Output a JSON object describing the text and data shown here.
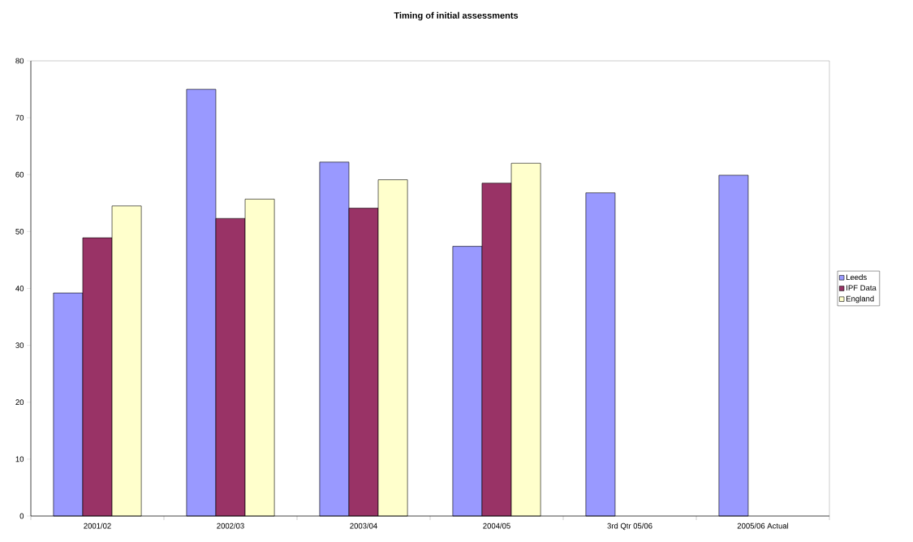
{
  "chart_data": {
    "type": "bar",
    "title": "Timing of initial assessments",
    "categories": [
      "2001/02",
      "2002/03",
      "2003/04",
      "2004/05",
      "3rd Qtr 05/06",
      "2005/06 Actual"
    ],
    "series": [
      {
        "name": "Leeds",
        "color": "#9999ff",
        "values": [
          39.2,
          75.0,
          62.2,
          47.4,
          56.8,
          59.9
        ]
      },
      {
        "name": "IPF Data",
        "color": "#993366",
        "values": [
          48.9,
          52.3,
          54.1,
          58.5,
          null,
          null
        ]
      },
      {
        "name": "England",
        "color": "#ffffcc",
        "values": [
          54.5,
          55.7,
          59.1,
          62.0,
          null,
          null
        ]
      }
    ],
    "ylim": [
      0,
      80
    ],
    "yticks": [
      0,
      10,
      20,
      30,
      40,
      50,
      60,
      70,
      80
    ],
    "grid": false,
    "legend": "right"
  }
}
